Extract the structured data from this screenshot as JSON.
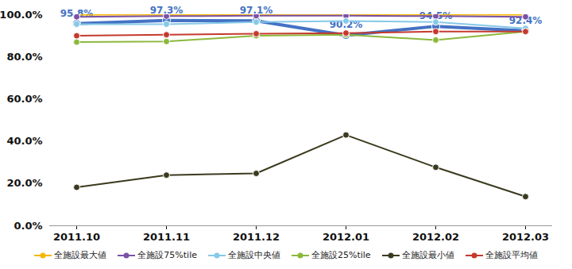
{
  "chart_data": {
    "type": "line",
    "categories": [
      "2011.10",
      "2011.11",
      "2011.12",
      "2012.01",
      "2012.02",
      "2012.03"
    ],
    "ylim": [
      0,
      100
    ],
    "yticks": [
      {
        "value": 0,
        "label": "0.0%"
      },
      {
        "value": 20,
        "label": "20.0%"
      },
      {
        "value": 40,
        "label": "40.0%"
      },
      {
        "value": 60,
        "label": "60.0%"
      },
      {
        "value": 80,
        "label": "80.0%"
      },
      {
        "value": 100,
        "label": "100.0%"
      }
    ],
    "grid": false,
    "legend": "bottom",
    "marker": "circle",
    "series": [
      {
        "color": "#4472c4",
        "values": [
          95.8,
          97.3,
          97.1,
          90.2,
          94.5,
          92.4
        ],
        "data_labels": true,
        "value_labels": [
          "95.8%",
          "97.3%",
          "97.1%",
          "90.2%",
          "94.5%",
          "92.4%"
        ]
      },
      {
        "name": "全施設最大値",
        "color": "#f5b700",
        "values": [
          100,
          100,
          100,
          100,
          100,
          100
        ]
      },
      {
        "name": "全施設75%tile",
        "color": "#7b52a6",
        "values": [
          99,
          99.3,
          99.5,
          99.5,
          99.3,
          99
        ]
      },
      {
        "name": "全施設中央値",
        "color": "#86c9e8",
        "values": [
          95.5,
          95.5,
          96.5,
          97,
          96.5,
          93.5
        ]
      },
      {
        "name": "全施設25%tile",
        "color": "#8cb83c",
        "values": [
          87,
          87.3,
          90,
          90.5,
          88,
          92
        ]
      },
      {
        "name": "全施設最小値",
        "color": "#3b3a1e",
        "values": [
          18.2,
          24,
          24.8,
          43,
          27.7,
          13.8
        ]
      },
      {
        "name": "全施設平均値",
        "color": "#c53a2e",
        "values": [
          90,
          90.5,
          91,
          91.3,
          92,
          92
        ]
      }
    ]
  }
}
